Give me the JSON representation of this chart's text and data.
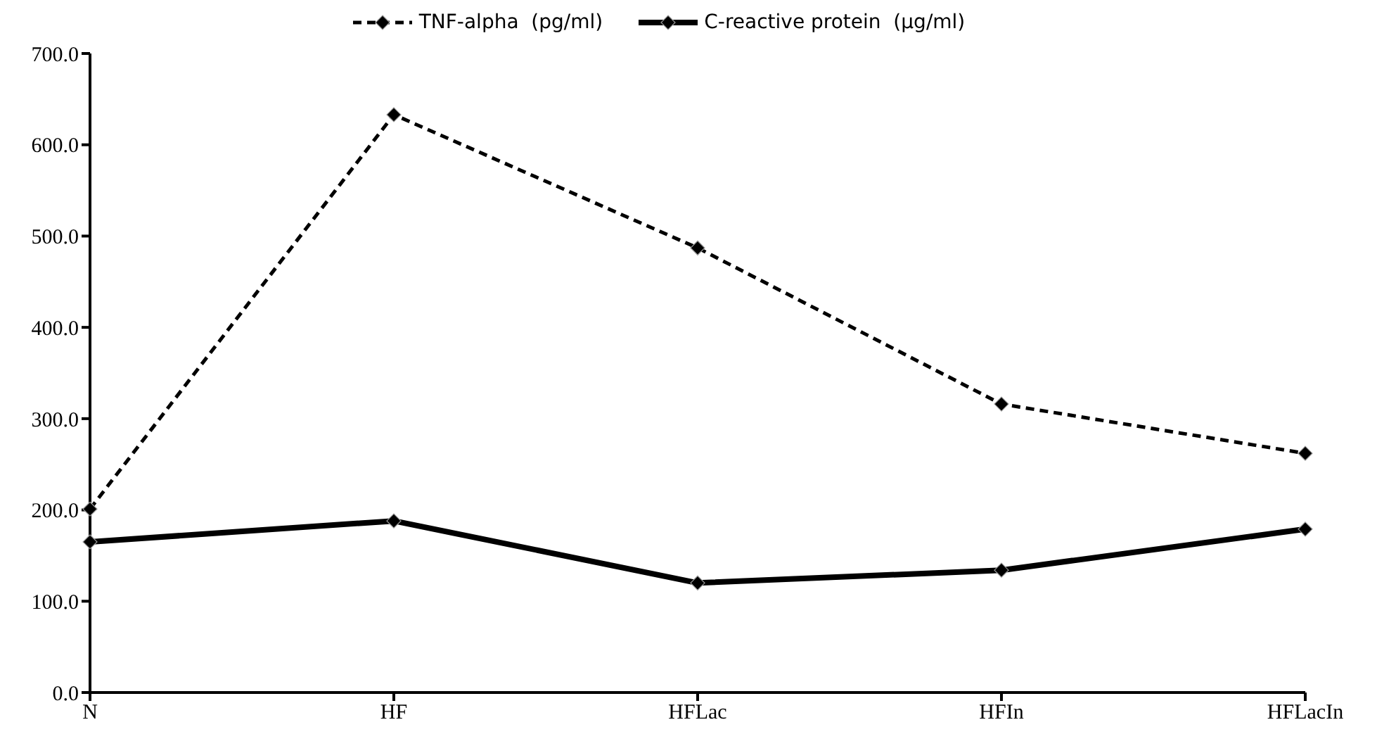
{
  "chart_data": {
    "type": "line",
    "categories": [
      "N",
      "HF",
      "HFLac",
      "HFIn",
      "HFLacIn"
    ],
    "series": [
      {
        "name": "TNF-alpha  (pg/ml)",
        "color": "#000000",
        "line_style": "dashed",
        "values": [
          201,
          633,
          487,
          316,
          262
        ]
      },
      {
        "name": "C-reactive protein  (µg/ml)",
        "color": "#000000",
        "line_style": "solid",
        "values": [
          165,
          188,
          120,
          134,
          179
        ]
      }
    ],
    "ylim": [
      0,
      700
    ],
    "yticks": [
      {
        "value": 0,
        "label": "0.0"
      },
      {
        "value": 100,
        "label": "100.0"
      },
      {
        "value": 200,
        "label": "200.0"
      },
      {
        "value": 300,
        "label": "300.0"
      },
      {
        "value": 400,
        "label": "400.0"
      },
      {
        "value": 500,
        "label": "500.0"
      },
      {
        "value": 600,
        "label": "600.0"
      },
      {
        "value": 700,
        "label": "700.0"
      }
    ],
    "grid": false,
    "legend": "top",
    "marker": "diamond"
  }
}
